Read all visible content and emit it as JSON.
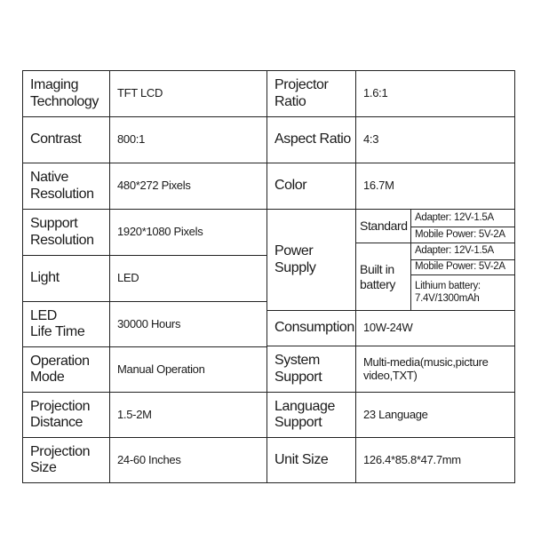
{
  "left_rows": [
    {
      "label": [
        "Imaging",
        "Technology"
      ],
      "value": "TFT   LCD"
    },
    {
      "label": [
        "Contrast"
      ],
      "value": "800:1"
    },
    {
      "label": [
        "Native",
        "Resolution"
      ],
      "value": "480*272 Pixels"
    },
    {
      "label": [
        "Support",
        "Resolution"
      ],
      "value": "1920*1080 Pixels"
    },
    {
      "label": [
        "Light"
      ],
      "value": "LED"
    },
    {
      "label": [
        "LED",
        "Life Time"
      ],
      "value": "30000 Hours"
    },
    {
      "label": [
        "Operation",
        "Mode"
      ],
      "value": "Manual Operation"
    },
    {
      "label": [
        "Projection",
        "Distance"
      ],
      "value": "1.5-2M"
    },
    {
      "label": [
        "Projection",
        "Size"
      ],
      "value": "24-60 Inches"
    }
  ],
  "right_rows": {
    "projector_ratio": {
      "label": [
        "Projector",
        "Ratio"
      ],
      "value": "1.6:1"
    },
    "aspect_ratio": {
      "label": [
        "Aspect Ratio"
      ],
      "value": "4:3"
    },
    "color": {
      "label": [
        "Color"
      ],
      "value": "16.7M"
    },
    "power_supply": {
      "label": [
        "Power",
        "Supply"
      ],
      "standard": {
        "label": "Standard",
        "items": [
          "Adapter: 12V-1.5A",
          "Mobile Power:  5V-2A"
        ]
      },
      "built_in": {
        "label": [
          "Built in",
          "battery"
        ],
        "items": [
          "Adapter:  12V-1.5A",
          "Mobile Power:  5V-2A"
        ],
        "lithium": [
          "Lithium battery:",
          "7.4V/1300mAh"
        ]
      }
    },
    "consumption": {
      "label": [
        "Consumption"
      ],
      "value": "10W-24W"
    },
    "system_support": {
      "label": [
        "System",
        "Support"
      ],
      "value": [
        "Multi-media(music,picture",
        "video,TXT)"
      ]
    },
    "language_support": {
      "label": [
        "Language",
        "Support"
      ],
      "value": "23 Language"
    },
    "unit_size": {
      "label": [
        "Unit Size"
      ],
      "value": "126.4*85.8*47.7mm"
    }
  }
}
